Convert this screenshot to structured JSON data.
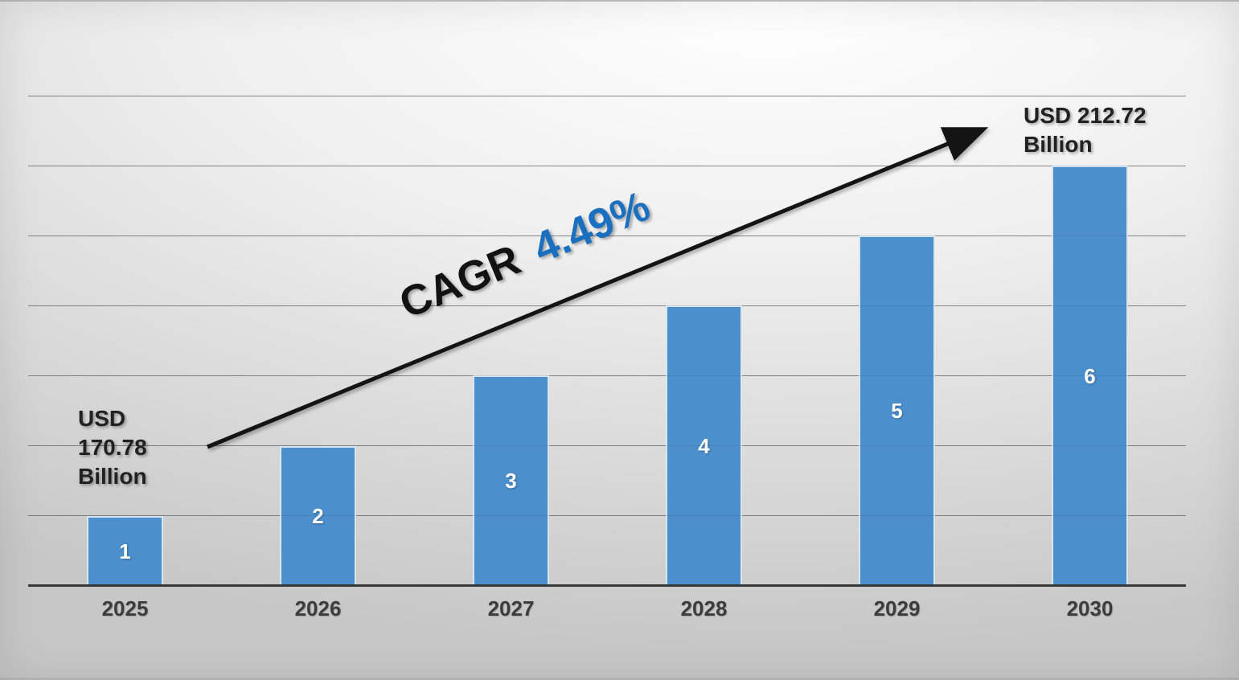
{
  "chart_data": {
    "type": "bar",
    "title": "",
    "categories": [
      "2025",
      "2026",
      "2027",
      "2028",
      "2029",
      "2030"
    ],
    "values": [
      1,
      2,
      3,
      4,
      5,
      6
    ],
    "value_labels": [
      "1",
      "2",
      "3",
      "4",
      "5",
      "6"
    ],
    "xlabel": "",
    "ylabel": "",
    "legend": "none",
    "gridlines": "horizontal",
    "start_annotation": {
      "text": "USD 170.78 Billion",
      "lines": [
        "USD",
        "170.78",
        "Billion"
      ]
    },
    "end_annotation": {
      "text": "USD 212.72 Billion",
      "lines": [
        "USD 212.72",
        "Billion"
      ]
    },
    "trend": {
      "label": "CAGR",
      "value": "4.49%"
    },
    "colors": {
      "bar": "#4b8fcc",
      "trend_label": "#121212",
      "trend_value": "#1a6fbf",
      "arrow": "#141414",
      "axis": "#383838",
      "annotation_text": "#212121",
      "bar_value_label": "#ffffff",
      "year_label": "#3c3c3c"
    }
  }
}
